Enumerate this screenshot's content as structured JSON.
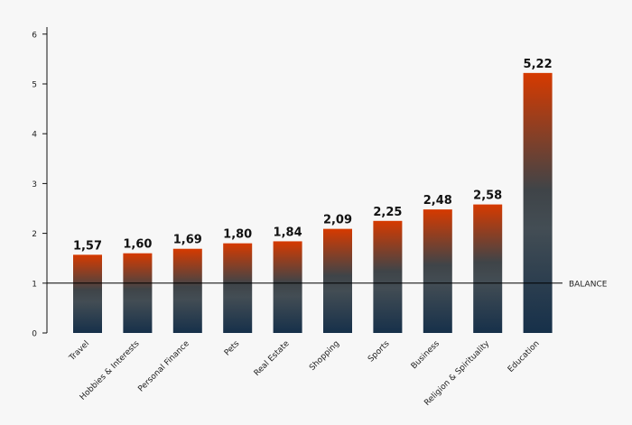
{
  "chart_data": {
    "type": "bar",
    "categories": [
      "Travel",
      "Hobbies & Interests",
      "Personal Finance",
      "Pets",
      "Real Estate",
      "Shopping",
      "Sports",
      "Business",
      "Religion & Spirituality",
      "Education"
    ],
    "values": [
      1.57,
      1.6,
      1.69,
      1.8,
      1.84,
      2.09,
      2.25,
      2.48,
      2.58,
      5.22
    ],
    "data_labels": [
      "1,57",
      "1,60",
      "1,69",
      "1,80",
      "1,84",
      "2,09",
      "2,25",
      "2,48",
      "2,58",
      "5,22"
    ],
    "ylim": [
      0,
      6
    ],
    "yticks": [
      "0",
      "1",
      "2",
      "3",
      "4",
      "5",
      "6"
    ],
    "reference_line": {
      "value": 1,
      "label": "BALANCE"
    },
    "grid": false,
    "colors": {
      "bar_top": "#d63a00",
      "bar_mid": "#3f4448",
      "bar_bottom": "#16304a",
      "axis": "#111111"
    }
  }
}
